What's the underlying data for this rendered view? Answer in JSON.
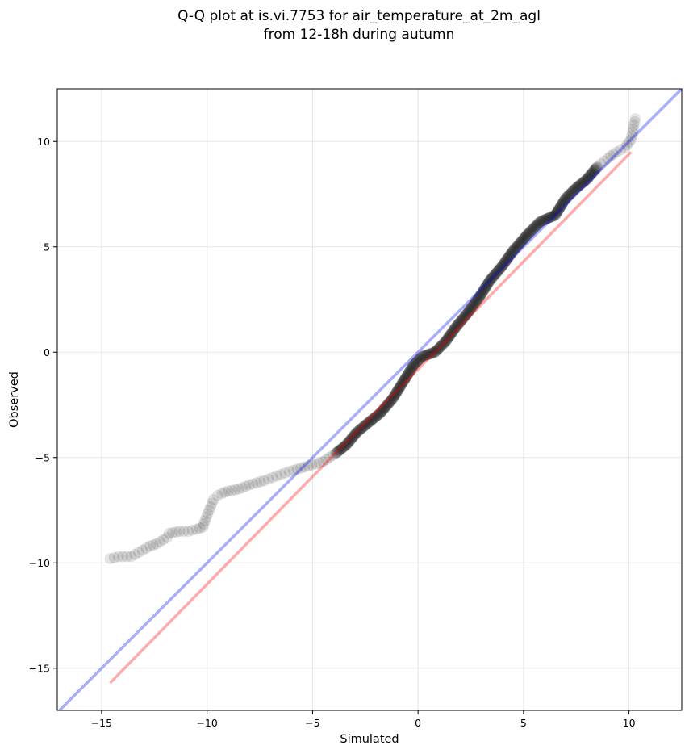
{
  "chart_data": {
    "type": "scatter",
    "title_lines": [
      "Q-Q plot at is.vi.7753 for air_temperature_at_2m_agl",
      "from 12-18h during autumn"
    ],
    "xlabel": "Simulated",
    "ylabel": "Observed",
    "xlim": [
      -17.1,
      12.5
    ],
    "ylim": [
      -17.0,
      12.5
    ],
    "xticks": [
      -15,
      -10,
      -5,
      0,
      5,
      10
    ],
    "yticks": [
      -15,
      -10,
      -5,
      0,
      5,
      10
    ],
    "xtick_labels": [
      "−15",
      "−10",
      "−5",
      "0",
      "5",
      "10"
    ],
    "ytick_labels": [
      "−15",
      "−10",
      "−5",
      "0",
      "5",
      "10"
    ],
    "grid": true,
    "colors": {
      "points": "#000000",
      "identity_line": "#0000ff",
      "fit_line": "#ff0000"
    },
    "identity_line": {
      "x": [
        -17.1,
        12.5
      ],
      "y": [
        -17.1,
        12.5
      ]
    },
    "fit_line": {
      "x": [
        -14.6,
        10.1
      ],
      "y": [
        -15.7,
        9.5
      ]
    },
    "qq_curve": {
      "x": [
        -14.6,
        -14.2,
        -13.6,
        -12.7,
        -12.4,
        -11.9,
        -11.8,
        -11.3,
        -10.9,
        -10.5,
        -10.2,
        -10.1,
        -9.9,
        -9.7,
        -9.5,
        -9.3,
        -9.0,
        -8.5,
        -8.0,
        -7.3,
        -6.5,
        -5.9,
        -5.2,
        -4.5,
        -3.9,
        -3.4,
        -2.9,
        -2.3,
        -1.8,
        -1.2,
        -0.7,
        -0.2,
        0.2,
        0.8,
        1.3,
        1.8,
        2.3,
        2.9,
        3.4,
        4.0,
        4.5,
        5.2,
        5.8,
        6.5,
        7.0,
        7.5,
        8.0,
        8.5,
        9.0,
        9.4,
        9.8,
        10.1,
        10.2,
        10.3
      ],
      "y": [
        -9.8,
        -9.7,
        -9.7,
        -9.2,
        -9.1,
        -8.8,
        -8.6,
        -8.5,
        -8.5,
        -8.4,
        -8.3,
        -8.0,
        -7.5,
        -7.0,
        -6.8,
        -6.7,
        -6.6,
        -6.5,
        -6.3,
        -6.1,
        -5.8,
        -5.6,
        -5.4,
        -5.2,
        -4.8,
        -4.4,
        -3.8,
        -3.3,
        -2.9,
        -2.2,
        -1.4,
        -0.6,
        -0.2,
        0.0,
        0.5,
        1.2,
        1.8,
        2.6,
        3.4,
        4.1,
        4.8,
        5.6,
        6.2,
        6.5,
        7.3,
        7.8,
        8.2,
        8.8,
        9.2,
        9.5,
        9.7,
        10.1,
        10.6,
        11.1
      ]
    }
  }
}
